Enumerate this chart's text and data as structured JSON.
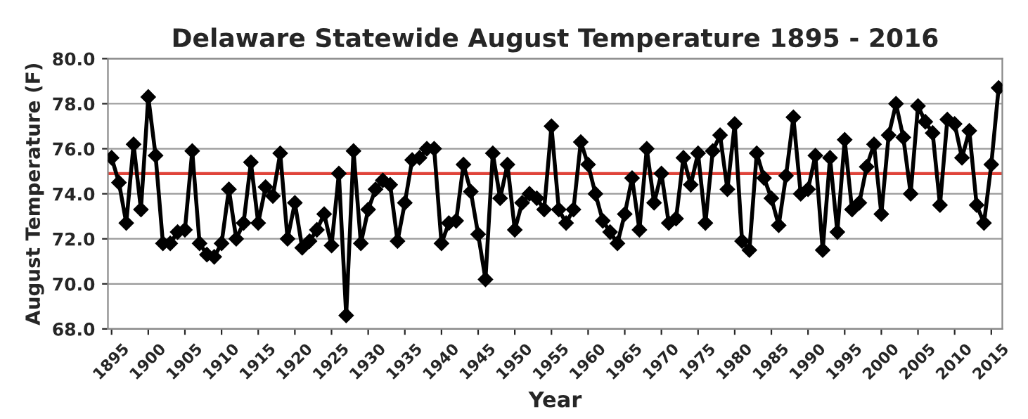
{
  "chart_data": {
    "type": "line",
    "title": "Delaware Statewide August Temperature 1895 - 2016",
    "xlabel": "Year",
    "ylabel": "August Temperature (F)",
    "x": [
      1895,
      1896,
      1897,
      1898,
      1899,
      1900,
      1901,
      1902,
      1903,
      1904,
      1905,
      1906,
      1907,
      1908,
      1909,
      1910,
      1911,
      1912,
      1913,
      1914,
      1915,
      1916,
      1917,
      1918,
      1919,
      1920,
      1921,
      1922,
      1923,
      1924,
      1925,
      1926,
      1927,
      1928,
      1929,
      1930,
      1931,
      1932,
      1933,
      1934,
      1935,
      1936,
      1937,
      1938,
      1939,
      1940,
      1941,
      1942,
      1943,
      1944,
      1945,
      1946,
      1947,
      1948,
      1949,
      1950,
      1951,
      1952,
      1953,
      1954,
      1955,
      1956,
      1957,
      1958,
      1959,
      1960,
      1961,
      1962,
      1963,
      1964,
      1965,
      1966,
      1967,
      1968,
      1969,
      1970,
      1971,
      1972,
      1973,
      1974,
      1975,
      1976,
      1977,
      1978,
      1979,
      1980,
      1981,
      1982,
      1983,
      1984,
      1985,
      1986,
      1987,
      1988,
      1989,
      1990,
      1991,
      1992,
      1993,
      1994,
      1995,
      1996,
      1997,
      1998,
      1999,
      2000,
      2001,
      2002,
      2003,
      2004,
      2005,
      2006,
      2007,
      2008,
      2009,
      2010,
      2011,
      2012,
      2013,
      2014,
      2015,
      2016
    ],
    "series": [
      {
        "color": "#000000",
        "values": [
          75.6,
          74.5,
          72.7,
          76.2,
          73.3,
          78.3,
          75.7,
          71.8,
          71.8,
          72.3,
          72.4,
          75.9,
          71.8,
          71.3,
          71.2,
          71.8,
          74.2,
          72.0,
          72.7,
          75.4,
          72.7,
          74.3,
          73.9,
          75.8,
          72.0,
          73.6,
          71.6,
          71.9,
          72.4,
          73.1,
          71.7,
          74.9,
          68.6,
          75.9,
          71.8,
          73.3,
          74.2,
          74.6,
          74.4,
          71.9,
          73.6,
          75.5,
          75.6,
          76.0,
          76.0,
          71.8,
          72.7,
          72.8,
          75.3,
          74.1,
          72.2,
          70.2,
          75.8,
          73.8,
          75.3,
          72.4,
          73.6,
          74.0,
          73.8,
          73.3,
          77.0,
          73.3,
          72.7,
          73.3,
          76.3,
          75.3,
          74.0,
          72.8,
          72.3,
          71.8,
          73.1,
          74.7,
          72.4,
          76.0,
          73.6,
          74.9,
          72.7,
          72.9,
          75.6,
          74.4,
          75.8,
          72.7,
          75.9,
          76.6,
          74.2,
          77.1,
          71.9,
          71.5,
          75.8,
          74.7,
          73.8,
          72.6,
          74.8,
          77.4,
          74.0,
          74.2,
          75.7,
          71.5,
          75.6,
          72.3,
          76.4,
          73.3,
          73.6,
          75.2,
          76.2,
          73.1,
          76.6,
          78.0,
          76.5,
          74.0,
          77.9,
          77.2,
          76.7,
          73.5,
          77.3,
          77.1,
          75.6,
          76.8,
          73.5,
          72.7,
          75.3,
          78.7
        ]
      }
    ],
    "ref_lines": [
      {
        "axis": "y",
        "value": 74.9,
        "color": "#e0443a"
      }
    ],
    "xlim": [
      1894.5,
      2016.5
    ],
    "xticks": [
      1895,
      1900,
      1905,
      1910,
      1915,
      1920,
      1925,
      1930,
      1935,
      1940,
      1945,
      1950,
      1955,
      1960,
      1965,
      1970,
      1975,
      1980,
      1985,
      1990,
      1995,
      2000,
      2005,
      2010,
      2015
    ],
    "ylim": [
      68,
      80
    ],
    "yticks": [
      {
        "value": 68,
        "label": "68.0"
      },
      {
        "value": 70,
        "label": "70.0"
      },
      {
        "value": 72,
        "label": "72.0"
      },
      {
        "value": 74,
        "label": "74.0"
      },
      {
        "value": 76,
        "label": "76.0"
      },
      {
        "value": 78,
        "label": "78.0"
      },
      {
        "value": 80,
        "label": "80.0"
      }
    ],
    "grid": "y",
    "marker": "diamond",
    "line_style": "solid",
    "legend": false
  }
}
